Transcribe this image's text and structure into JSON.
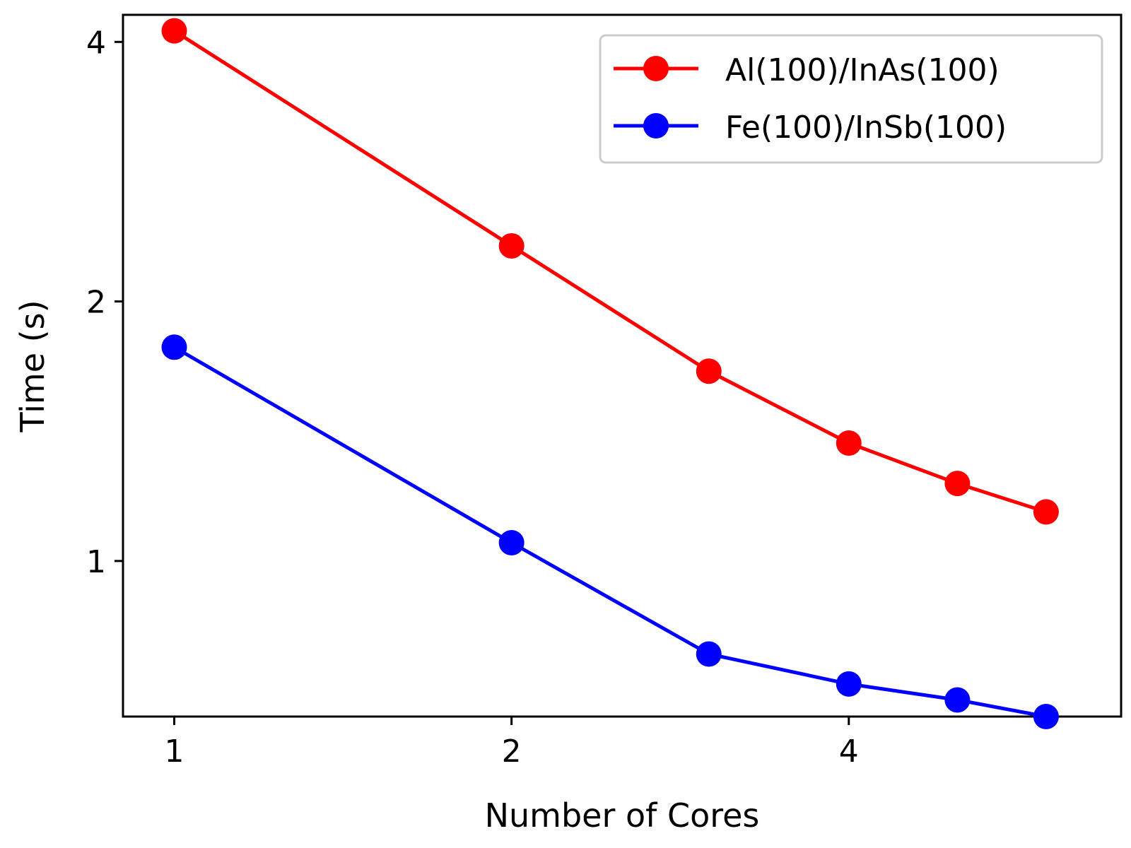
{
  "chart_data": {
    "type": "line",
    "xscale": "log2",
    "yscale": "log2",
    "xlabel": "Number of Cores",
    "ylabel": "Time (s)",
    "xlim": [
      0.9,
      7.0
    ],
    "ylim": [
      0.66,
      4.3
    ],
    "xticks": [
      {
        "value": 1,
        "label": "1"
      },
      {
        "value": 2,
        "label": "2"
      },
      {
        "value": 4,
        "label": "4"
      }
    ],
    "yticks": [
      {
        "value": 1,
        "label": "1"
      },
      {
        "value": 2,
        "label": "2"
      },
      {
        "value": 4,
        "label": "4"
      }
    ],
    "x": [
      1,
      2,
      3,
      4,
      5,
      6
    ],
    "series": [
      {
        "name": "Al(100)/InAs(100)",
        "color": "#ff0000",
        "values": [
          4.12,
          2.32,
          1.66,
          1.37,
          1.23,
          1.14
        ]
      },
      {
        "name": "Fe(100)/InSb(100)",
        "color": "#0000ff",
        "values": [
          1.77,
          1.05,
          0.78,
          0.72,
          0.69,
          0.66
        ]
      }
    ],
    "legend_position": "top-right",
    "grid": false
  }
}
